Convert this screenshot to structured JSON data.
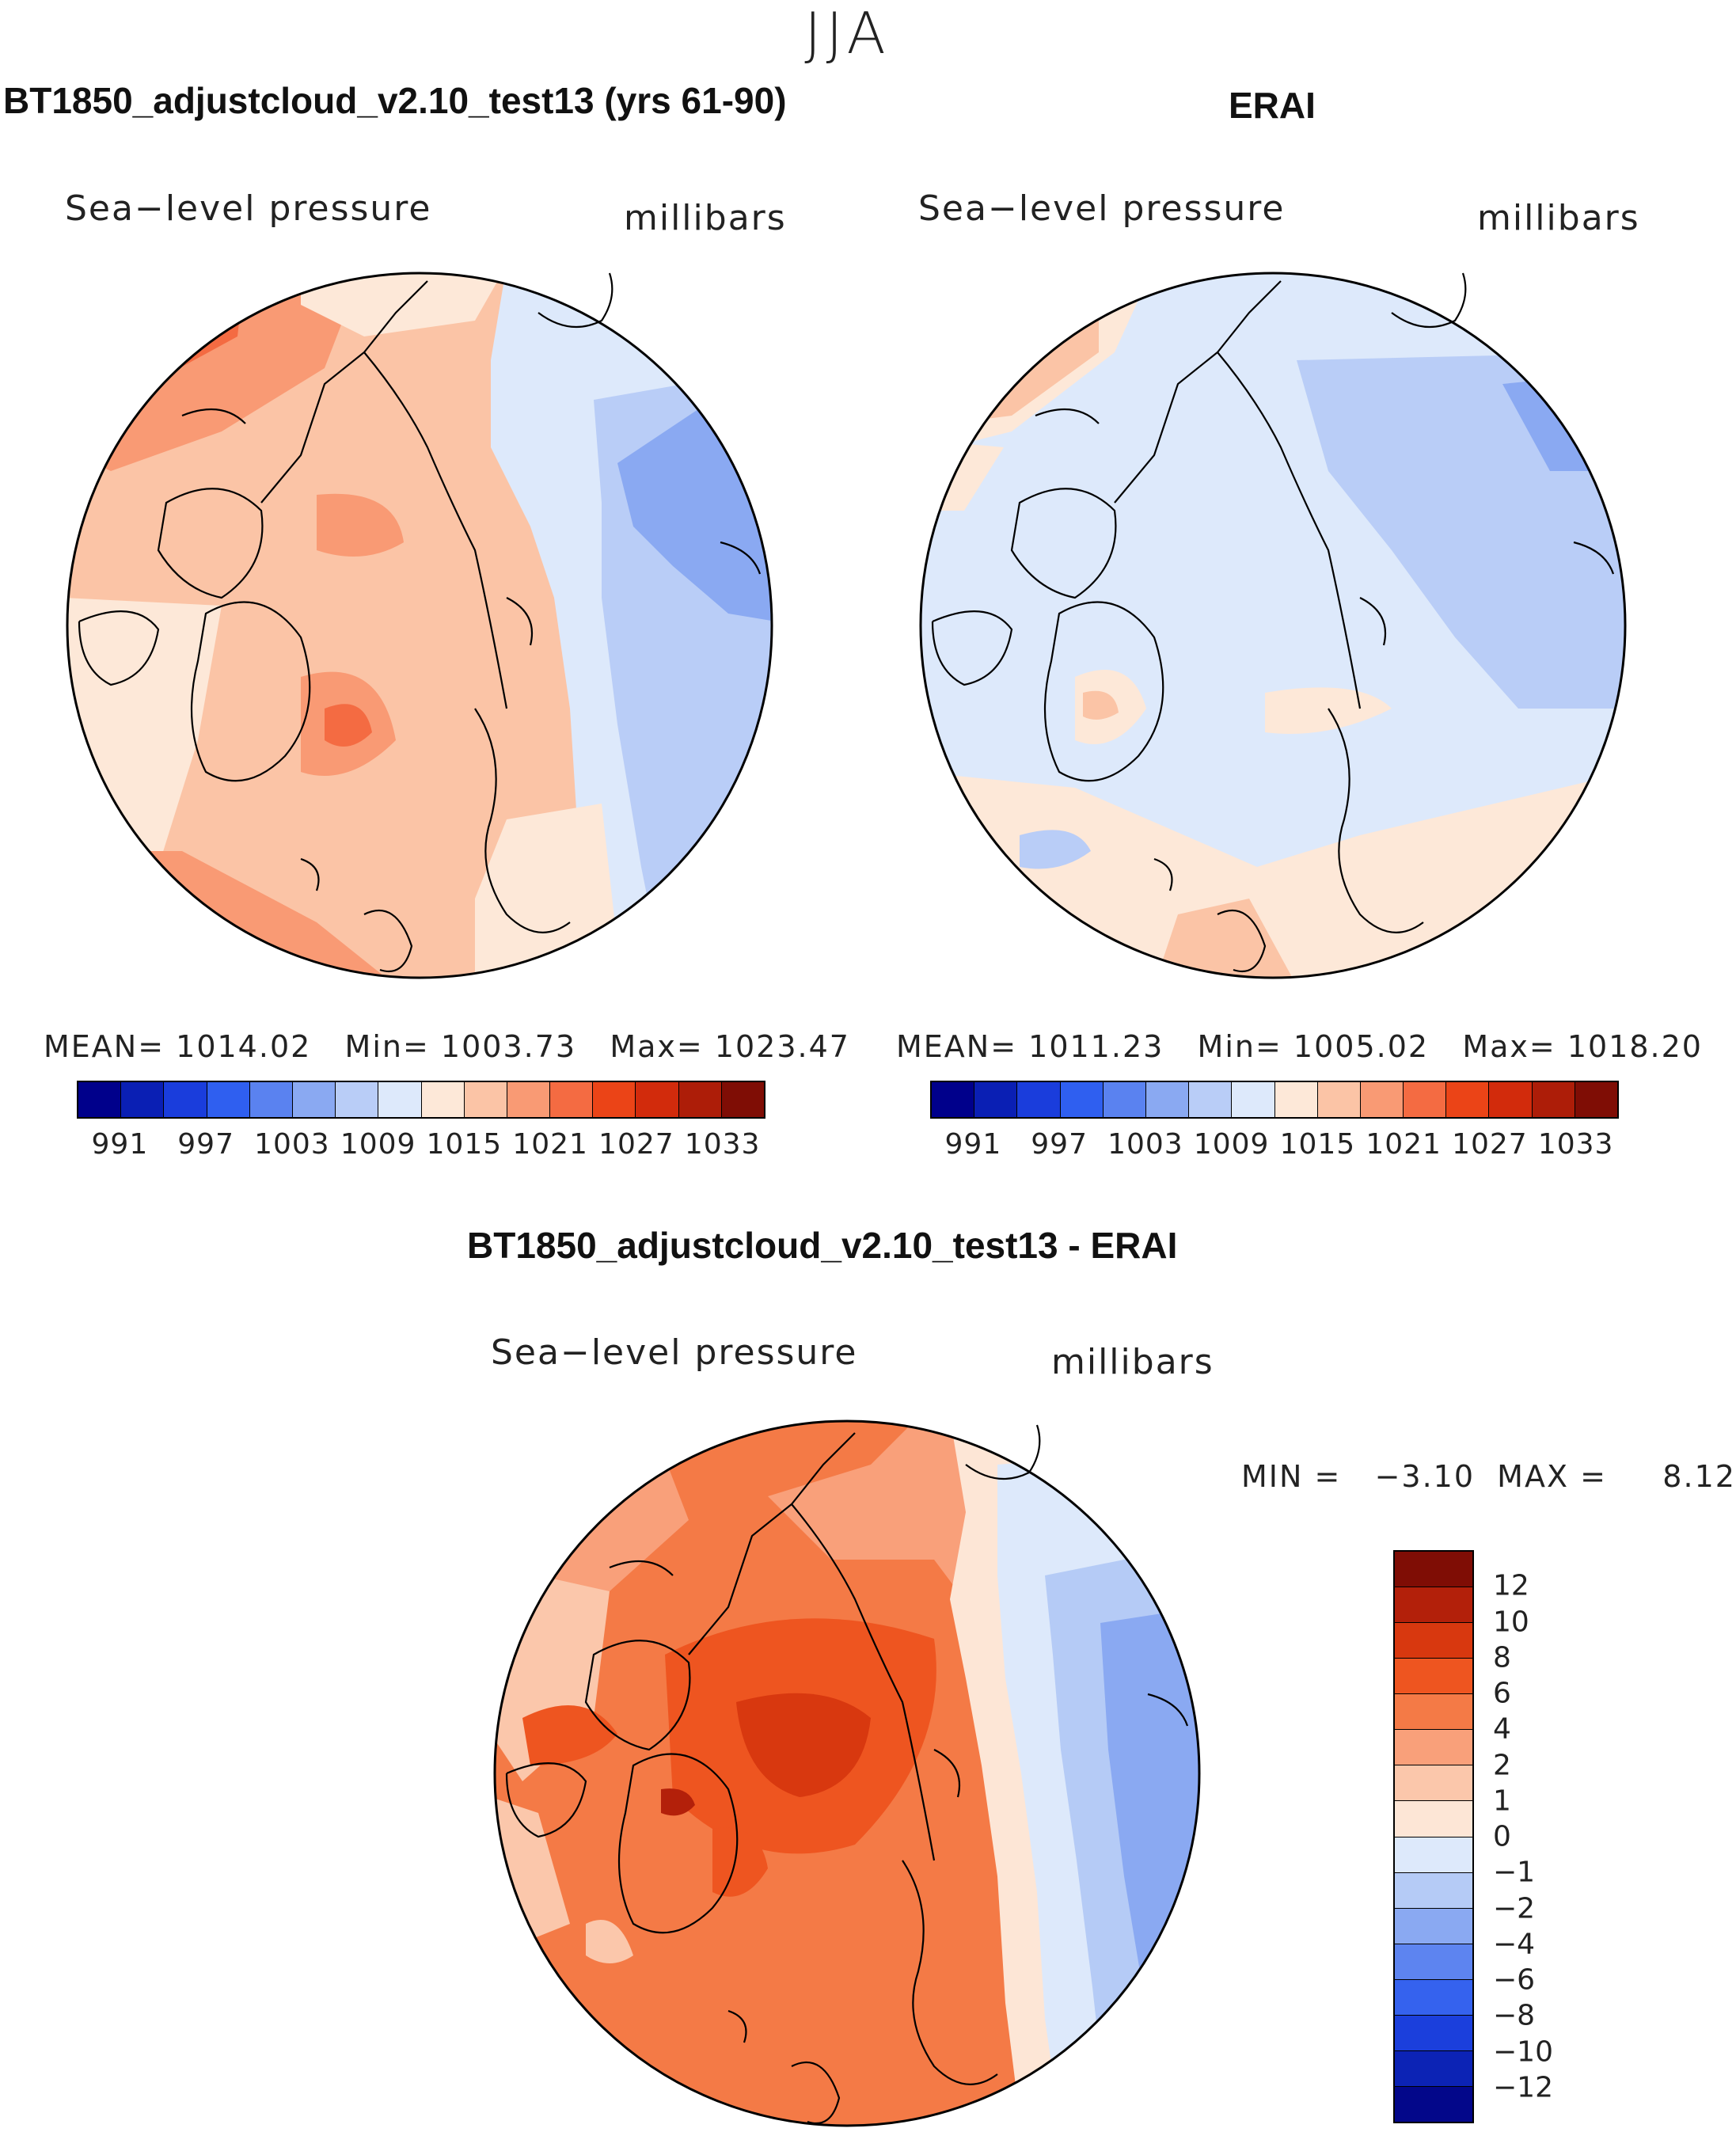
{
  "season": "JJA",
  "panels": [
    {
      "title": "BT1850_adjustcloud_v2.10_test13 (yrs 61-90)",
      "variable": "Sea−level pressure",
      "units": "millibars",
      "mean_label": "MEAN=",
      "mean": "1014.02",
      "min_label": "Min=",
      "min": "1003.73",
      "max_label": "Max=",
      "max": "1023.47"
    },
    {
      "title": "ERAI",
      "variable": "Sea−level pressure",
      "units": "millibars",
      "mean_label": "MEAN=",
      "mean": "1011.23",
      "min_label": "Min=",
      "min": "1005.02",
      "max_label": "Max=",
      "max": "1018.20"
    }
  ],
  "diff_panel": {
    "title": "BT1850_adjustcloud_v2.10_test13 - ERAI",
    "variable": "Sea−level pressure",
    "units": "millibars",
    "minmax_text": "MIN =   −3.10  MAX =     8.12"
  },
  "colorbar_abs": {
    "colors": [
      "#00008b",
      "#0a1fb4",
      "#1a3ddc",
      "#2f5ff0",
      "#5a82f0",
      "#8aa9f2",
      "#b9cdf7",
      "#dde9fb",
      "#fde8d8",
      "#fbc4a6",
      "#f99a74",
      "#f46b42",
      "#eb4417",
      "#d22b0c",
      "#ad1d08",
      "#7f0d05"
    ],
    "tick_labels": [
      "991",
      "997",
      "1003",
      "1009",
      "1015",
      "1021",
      "1027",
      "1033"
    ]
  },
  "colorbar_diff": {
    "colors": [
      "#7f0d05",
      "#b3200a",
      "#d8380f",
      "#ee5520",
      "#f47a46",
      "#f9a07a",
      "#fbc7ab",
      "#fde6d6",
      "#dde9fb",
      "#b5cbf6",
      "#8aa9f2",
      "#5d84f0",
      "#3562ee",
      "#1b3fdc",
      "#0c23b5",
      "#03078a"
    ],
    "tick_labels": [
      "12",
      "10",
      "8",
      "6",
      "4",
      "2",
      "1",
      "0",
      "−1",
      "−2",
      "−4",
      "−6",
      "−8",
      "−10",
      "−12"
    ]
  }
}
